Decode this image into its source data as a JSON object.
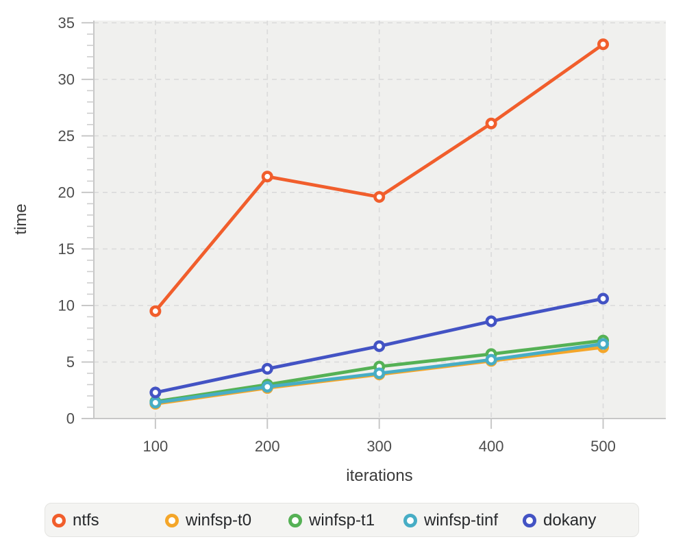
{
  "chart_data": {
    "type": "line",
    "title": "",
    "xlabel": "iterations",
    "ylabel": "time",
    "x": [
      100,
      200,
      300,
      400,
      500
    ],
    "x_tick_labels": [
      "100",
      "200",
      "300",
      "400",
      "500"
    ],
    "y_tick_labels": [
      "0",
      "5",
      "10",
      "15",
      "20",
      "25",
      "30",
      "35"
    ],
    "y_major_ticks": [
      0,
      5,
      10,
      15,
      20,
      25,
      30,
      35
    ],
    "y_minor_step": 1,
    "xlim": [
      45,
      556
    ],
    "ylim": [
      0,
      35.2
    ],
    "grid": "dashed, major ticks only, both axes",
    "legend_position": "bottom",
    "marker": "open-circle",
    "series": [
      {
        "name": "ntfs",
        "color": "#F15E2C",
        "values": [
          9.5,
          21.4,
          19.6,
          26.1,
          33.1
        ]
      },
      {
        "name": "winfsp-t0",
        "color": "#F4A62A",
        "values": [
          1.3,
          2.7,
          3.9,
          5.1,
          6.3
        ]
      },
      {
        "name": "winfsp-t1",
        "color": "#55B155",
        "values": [
          1.5,
          3.0,
          4.6,
          5.7,
          6.9
        ]
      },
      {
        "name": "winfsp-tinf",
        "color": "#47ADC5",
        "values": [
          1.4,
          2.8,
          4.0,
          5.2,
          6.6
        ]
      },
      {
        "name": "dokany",
        "color": "#4353C4",
        "values": [
          2.3,
          4.4,
          6.4,
          8.6,
          10.6
        ]
      }
    ]
  },
  "colors": {
    "page_bg": "#FFFFFF",
    "plot_bg": "#F0F0EE",
    "grid": "#DBDBDB",
    "axis": "#C7C7C7",
    "minor_tick": "#CDCDCD",
    "tick_label": "#4D4D4D",
    "axis_label": "#3A3A3A",
    "legend_bg": "#F4F4F2",
    "legend_border": "#E4E4E1",
    "legend_text": "#26282B"
  }
}
